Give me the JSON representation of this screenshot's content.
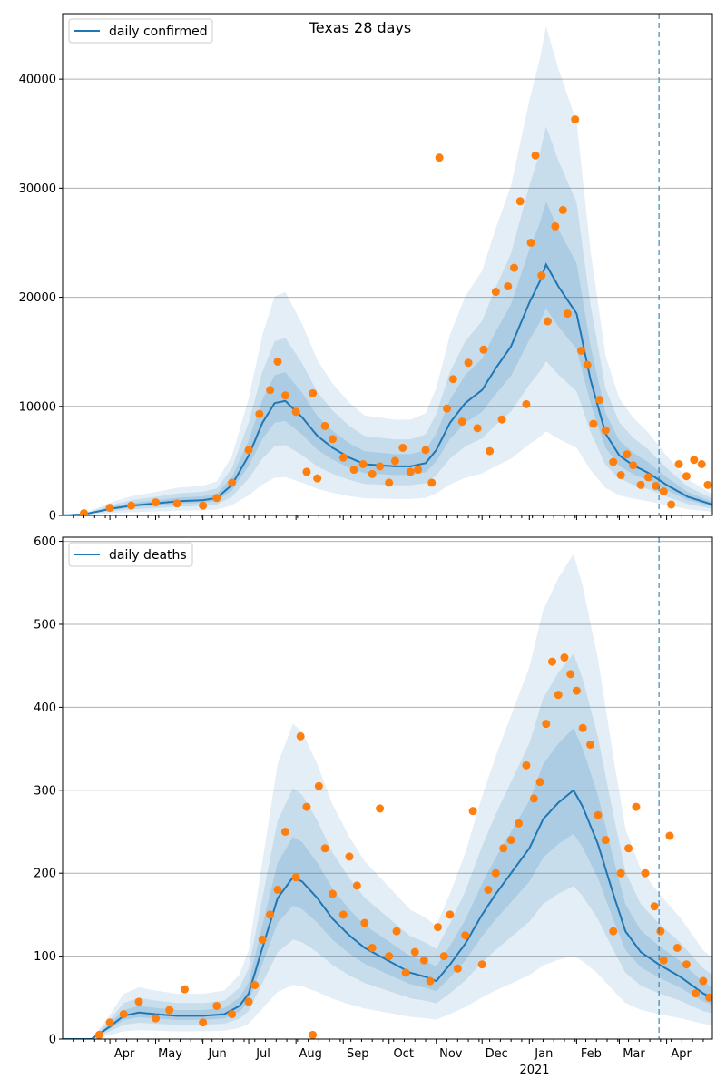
{
  "figure": {
    "title": "Texas 28 days",
    "year_label": "2021"
  },
  "colors": {
    "line": "#1f77b4",
    "points": "#ff7f0e",
    "band": "#1f77b4",
    "grid": "#b0b0b0",
    "marker_line": "#1f77b4"
  },
  "chart_data": [
    {
      "type": "line",
      "id": "confirmed",
      "title": "Texas 28 days",
      "legend": "daily confirmed",
      "legend_position": "top-left",
      "grid": "horizontal",
      "x_range": [
        "2020-03-01",
        "2021-05-01"
      ],
      "ylim": [
        0,
        46000
      ],
      "yticks": [
        0,
        10000,
        20000,
        30000,
        40000
      ],
      "xticks": [
        "Apr",
        "May",
        "Jun",
        "Jul",
        "Aug",
        "Sep",
        "Oct",
        "Nov",
        "Dec",
        "2021",
        "Feb",
        "Mar",
        "Apr"
      ],
      "vertical_marker": "2021-03-27",
      "series_model": {
        "x": [
          "2020-03-01",
          "2020-03-15",
          "2020-04-01",
          "2020-04-15",
          "2020-05-01",
          "2020-05-15",
          "2020-06-01",
          "2020-06-10",
          "2020-06-20",
          "2020-07-01",
          "2020-07-10",
          "2020-07-18",
          "2020-07-25",
          "2020-08-05",
          "2020-08-15",
          "2020-08-25",
          "2020-09-05",
          "2020-09-15",
          "2020-09-25",
          "2020-10-05",
          "2020-10-15",
          "2020-10-25",
          "2020-11-01",
          "2020-11-10",
          "2020-11-20",
          "2020-12-01",
          "2020-12-10",
          "2020-12-20",
          "2021-01-01",
          "2021-01-08",
          "2021-01-12",
          "2021-01-20",
          "2021-02-01",
          "2021-02-10",
          "2021-02-20",
          "2021-03-01",
          "2021-03-10",
          "2021-03-20",
          "2021-04-01",
          "2021-04-15",
          "2021-05-01"
        ],
        "y": [
          0,
          100,
          600,
          900,
          1100,
          1300,
          1400,
          1600,
          2800,
          5500,
          8500,
          10300,
          10500,
          9000,
          7300,
          6200,
          5300,
          4700,
          4600,
          4500,
          4500,
          4800,
          6000,
          8500,
          10300,
          11500,
          13500,
          15500,
          19500,
          21500,
          23000,
          21000,
          18500,
          12500,
          7500,
          5500,
          4600,
          3900,
          2800,
          1700,
          1000
        ]
      },
      "points": {
        "x": [
          "2020-03-15",
          "2020-04-01",
          "2020-04-15",
          "2020-05-01",
          "2020-05-15",
          "2020-06-01",
          "2020-06-10",
          "2020-06-20",
          "2020-07-01",
          "2020-07-08",
          "2020-07-15",
          "2020-07-20",
          "2020-07-25",
          "2020-08-01",
          "2020-08-08",
          "2020-08-12",
          "2020-08-15",
          "2020-08-20",
          "2020-08-25",
          "2020-09-01",
          "2020-09-08",
          "2020-09-14",
          "2020-09-20",
          "2020-09-25",
          "2020-10-01",
          "2020-10-05",
          "2020-10-10",
          "2020-10-15",
          "2020-10-20",
          "2020-10-25",
          "2020-10-29",
          "2020-11-03",
          "2020-11-08",
          "2020-11-12",
          "2020-11-18",
          "2020-11-22",
          "2020-11-28",
          "2020-12-02",
          "2020-12-06",
          "2020-12-10",
          "2020-12-14",
          "2020-12-18",
          "2020-12-22",
          "2020-12-26",
          "2020-12-30",
          "2021-01-02",
          "2021-01-05",
          "2021-01-09",
          "2021-01-13",
          "2021-01-18",
          "2021-01-23",
          "2021-01-26",
          "2021-01-31",
          "2021-02-04",
          "2021-02-08",
          "2021-02-12",
          "2021-02-16",
          "2021-02-20",
          "2021-02-25",
          "2021-03-02",
          "2021-03-06",
          "2021-03-10",
          "2021-03-15",
          "2021-03-20",
          "2021-03-25",
          "2021-03-30",
          "2021-04-04",
          "2021-04-09",
          "2021-04-14",
          "2021-04-19",
          "2021-04-24",
          "2021-04-28"
        ],
        "y": [
          200,
          700,
          900,
          1200,
          1100,
          900,
          1600,
          3000,
          6000,
          9300,
          11500,
          14100,
          11000,
          9500,
          4000,
          11200,
          3400,
          8200,
          7000,
          5300,
          4200,
          4700,
          3800,
          4500,
          3000,
          5000,
          6200,
          4000,
          4200,
          6000,
          3000,
          32800,
          9800,
          12500,
          8600,
          14000,
          8000,
          15200,
          5900,
          20500,
          8800,
          21000,
          22700,
          28800,
          10200,
          25000,
          33000,
          22000,
          17800,
          26500,
          28000,
          18500,
          36300,
          15100,
          13800,
          8400,
          10600,
          7800,
          4900,
          3700,
          5600,
          4600,
          2800,
          3500,
          2700,
          2200,
          1000,
          4700,
          3600,
          5100,
          4700,
          2800
        ]
      }
    },
    {
      "type": "line",
      "id": "deaths",
      "legend": "daily deaths",
      "legend_position": "top-left",
      "grid": "horizontal",
      "x_range": [
        "2020-03-01",
        "2021-05-01"
      ],
      "ylim": [
        0,
        605
      ],
      "yticks": [
        0,
        100,
        200,
        300,
        400,
        500,
        600
      ],
      "xticks": [
        "Apr",
        "May",
        "Jun",
        "Jul",
        "Aug",
        "Sep",
        "Oct",
        "Nov",
        "Dec",
        "2021",
        "Feb",
        "Mar",
        "Apr"
      ],
      "vertical_marker": "2021-03-27",
      "series_model": {
        "x": [
          "2020-03-01",
          "2020-03-20",
          "2020-04-01",
          "2020-04-10",
          "2020-04-20",
          "2020-05-01",
          "2020-05-15",
          "2020-06-01",
          "2020-06-15",
          "2020-06-25",
          "2020-07-01",
          "2020-07-10",
          "2020-07-20",
          "2020-07-30",
          "2020-08-05",
          "2020-08-15",
          "2020-08-25",
          "2020-09-05",
          "2020-09-15",
          "2020-09-25",
          "2020-10-05",
          "2020-10-15",
          "2020-10-25",
          "2020-11-01",
          "2020-11-10",
          "2020-11-20",
          "2020-12-01",
          "2020-12-10",
          "2020-12-20",
          "2021-01-01",
          "2021-01-10",
          "2021-01-20",
          "2021-01-30",
          "2021-02-05",
          "2021-02-15",
          "2021-02-25",
          "2021-03-05",
          "2021-03-15",
          "2021-03-27",
          "2021-04-10",
          "2021-04-25",
          "2021-05-01"
        ],
        "y": [
          0,
          0,
          15,
          28,
          32,
          30,
          28,
          28,
          30,
          40,
          55,
          110,
          170,
          195,
          190,
          170,
          145,
          125,
          110,
          100,
          90,
          80,
          75,
          70,
          90,
          115,
          150,
          175,
          200,
          230,
          265,
          285,
          300,
          280,
          235,
          175,
          130,
          105,
          90,
          75,
          55,
          50
        ]
      },
      "points": {
        "x": [
          "2020-03-25",
          "2020-04-01",
          "2020-04-10",
          "2020-04-20",
          "2020-05-01",
          "2020-05-10",
          "2020-05-20",
          "2020-06-01",
          "2020-06-10",
          "2020-06-20",
          "2020-07-01",
          "2020-07-05",
          "2020-07-10",
          "2020-07-15",
          "2020-07-20",
          "2020-07-25",
          "2020-08-01",
          "2020-08-04",
          "2020-08-08",
          "2020-08-12",
          "2020-08-16",
          "2020-08-20",
          "2020-08-25",
          "2020-09-01",
          "2020-09-05",
          "2020-09-10",
          "2020-09-15",
          "2020-09-20",
          "2020-09-25",
          "2020-10-01",
          "2020-10-06",
          "2020-10-12",
          "2020-10-18",
          "2020-10-24",
          "2020-10-28",
          "2020-11-02",
          "2020-11-06",
          "2020-11-10",
          "2020-11-15",
          "2020-11-20",
          "2020-11-25",
          "2020-12-01",
          "2020-12-05",
          "2020-12-10",
          "2020-12-15",
          "2020-12-20",
          "2020-12-25",
          "2020-12-30",
          "2021-01-04",
          "2021-01-08",
          "2021-01-12",
          "2021-01-16",
          "2021-01-20",
          "2021-01-24",
          "2021-01-28",
          "2021-02-01",
          "2021-02-05",
          "2021-02-10",
          "2021-02-15",
          "2021-02-20",
          "2021-02-25",
          "2021-03-02",
          "2021-03-07",
          "2021-03-12",
          "2021-03-18",
          "2021-03-24",
          "2021-03-28",
          "2021-03-30",
          "2021-04-03",
          "2021-04-08",
          "2021-04-14",
          "2021-04-20",
          "2021-04-25",
          "2021-04-29"
        ],
        "y": [
          5,
          20,
          30,
          45,
          25,
          35,
          60,
          20,
          40,
          30,
          45,
          65,
          120,
          150,
          180,
          250,
          195,
          365,
          280,
          5,
          305,
          230,
          175,
          150,
          220,
          185,
          140,
          110,
          278,
          100,
          130,
          80,
          105,
          95,
          70,
          135,
          100,
          150,
          85,
          125,
          275,
          90,
          180,
          200,
          230,
          240,
          260,
          330,
          290,
          310,
          380,
          455,
          415,
          460,
          440,
          420,
          375,
          355,
          270,
          240,
          130,
          200,
          230,
          280,
          200,
          160,
          130,
          95,
          245,
          110,
          90,
          55,
          70,
          50
        ]
      }
    }
  ]
}
